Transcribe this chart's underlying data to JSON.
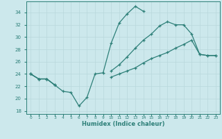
{
  "xlabel": "Humidex (Indice chaleur)",
  "bg_color": "#cce8ec",
  "line_color": "#2d7f78",
  "grid_color": "#b8d8dc",
  "x_values": [
    0,
    1,
    2,
    3,
    4,
    5,
    6,
    7,
    8,
    9,
    10,
    11,
    12,
    13,
    14,
    15,
    16,
    17,
    18,
    19,
    20,
    21,
    22,
    23
  ],
  "series": [
    [
      24.0,
      23.2,
      23.2,
      22.2,
      21.2,
      21.0,
      18.8,
      20.2,
      24.0,
      24.2,
      29.0,
      32.3,
      33.8,
      35.0,
      34.2,
      null,
      null,
      null,
      null,
      null,
      null,
      null,
      null,
      null
    ],
    [
      24.0,
      23.2,
      23.2,
      22.2,
      null,
      null,
      null,
      null,
      null,
      null,
      24.5,
      25.5,
      26.8,
      28.2,
      29.5,
      30.5,
      31.8,
      32.5,
      32.0,
      32.0,
      30.5,
      27.2,
      27.0,
      27.0
    ],
    [
      24.0,
      23.2,
      23.2,
      22.2,
      null,
      null,
      null,
      null,
      null,
      null,
      23.5,
      24.0,
      24.5,
      25.0,
      25.8,
      26.5,
      27.0,
      27.5,
      28.2,
      28.8,
      29.5,
      27.2,
      27.0,
      27.0
    ]
  ],
  "ylim": [
    17.5,
    35.8
  ],
  "yticks": [
    18,
    20,
    22,
    24,
    26,
    28,
    30,
    32,
    34
  ],
  "xlim": [
    -0.5,
    23.5
  ],
  "xticks": [
    0,
    1,
    2,
    3,
    4,
    5,
    6,
    7,
    8,
    9,
    10,
    11,
    12,
    13,
    14,
    15,
    16,
    17,
    18,
    19,
    20,
    21,
    22,
    23
  ]
}
